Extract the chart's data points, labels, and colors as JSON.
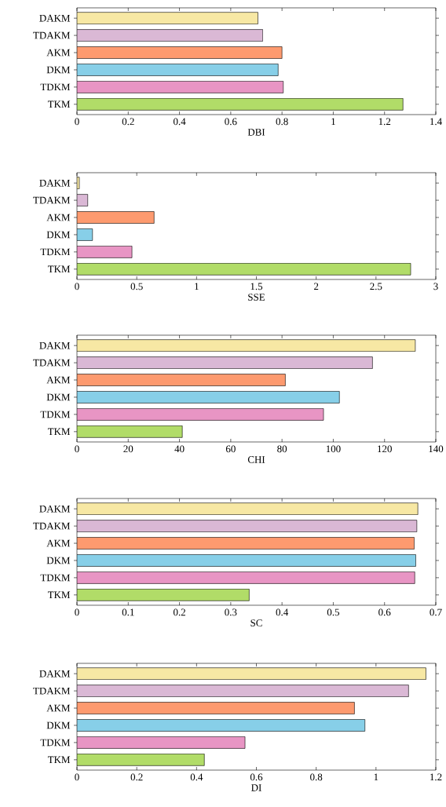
{
  "chart_data": [
    {
      "type": "bar",
      "orientation": "horizontal",
      "categories": [
        "DAKM",
        "TDAKM",
        "AKM",
        "DKM",
        "TDKM",
        "TKM"
      ],
      "values": [
        0.706,
        0.725,
        0.8,
        0.785,
        0.805,
        1.272
      ],
      "colors": [
        "#f7e8a4",
        "#dab8d5",
        "#fd9a6f",
        "#87cfe8",
        "#e895c4",
        "#b1dc68"
      ],
      "xlabel": "DBI",
      "xlim": [
        0,
        1.4
      ],
      "xticks": [
        0,
        0.2,
        0.4,
        0.6,
        0.8,
        1,
        1.2,
        1.4
      ]
    },
    {
      "type": "bar",
      "orientation": "horizontal",
      "categories": [
        "DAKM",
        "TDAKM",
        "AKM",
        "DKM",
        "TDKM",
        "TKM"
      ],
      "values": [
        0.02,
        0.09,
        0.645,
        0.13,
        0.46,
        2.79
      ],
      "colors": [
        "#f7e8a4",
        "#dab8d5",
        "#fd9a6f",
        "#87cfe8",
        "#e895c4",
        "#b1dc68"
      ],
      "xlabel": "SSE",
      "xlim": [
        0,
        3
      ],
      "xticks": [
        0,
        0.5,
        1,
        1.5,
        2,
        2.5,
        3
      ]
    },
    {
      "type": "bar",
      "orientation": "horizontal",
      "categories": [
        "DAKM",
        "TDAKM",
        "AKM",
        "DKM",
        "TDKM",
        "TKM"
      ],
      "values": [
        132,
        115.3,
        81.3,
        102.4,
        96.2,
        41.1
      ],
      "colors": [
        "#f7e8a4",
        "#dab8d5",
        "#fd9a6f",
        "#87cfe8",
        "#e895c4",
        "#b1dc68"
      ],
      "xlabel": "CHI",
      "xlim": [
        0,
        140
      ],
      "xticks": [
        0,
        20,
        40,
        60,
        80,
        100,
        120,
        140
      ]
    },
    {
      "type": "bar",
      "orientation": "horizontal",
      "categories": [
        "DAKM",
        "TDAKM",
        "AKM",
        "DKM",
        "TDKM",
        "TKM"
      ],
      "values": [
        0.665,
        0.663,
        0.658,
        0.661,
        0.659,
        0.336
      ],
      "colors": [
        "#f7e8a4",
        "#dab8d5",
        "#fd9a6f",
        "#87cfe8",
        "#e895c4",
        "#b1dc68"
      ],
      "xlabel": "SC",
      "xlim": [
        0,
        0.7
      ],
      "xticks": [
        0,
        0.1,
        0.2,
        0.3,
        0.4,
        0.5,
        0.6,
        0.7
      ]
    },
    {
      "type": "bar",
      "orientation": "horizontal",
      "categories": [
        "DAKM",
        "TDAKM",
        "AKM",
        "DKM",
        "TDKM",
        "TKM"
      ],
      "values": [
        1.167,
        1.109,
        0.928,
        0.963,
        0.562,
        0.426
      ],
      "colors": [
        "#f7e8a4",
        "#dab8d5",
        "#fd9a6f",
        "#87cfe8",
        "#e895c4",
        "#b1dc68"
      ],
      "xlabel": "DI",
      "xlim": [
        0,
        1.2
      ],
      "xticks": [
        0,
        0.2,
        0.4,
        0.6,
        0.8,
        1,
        1.2
      ]
    }
  ]
}
